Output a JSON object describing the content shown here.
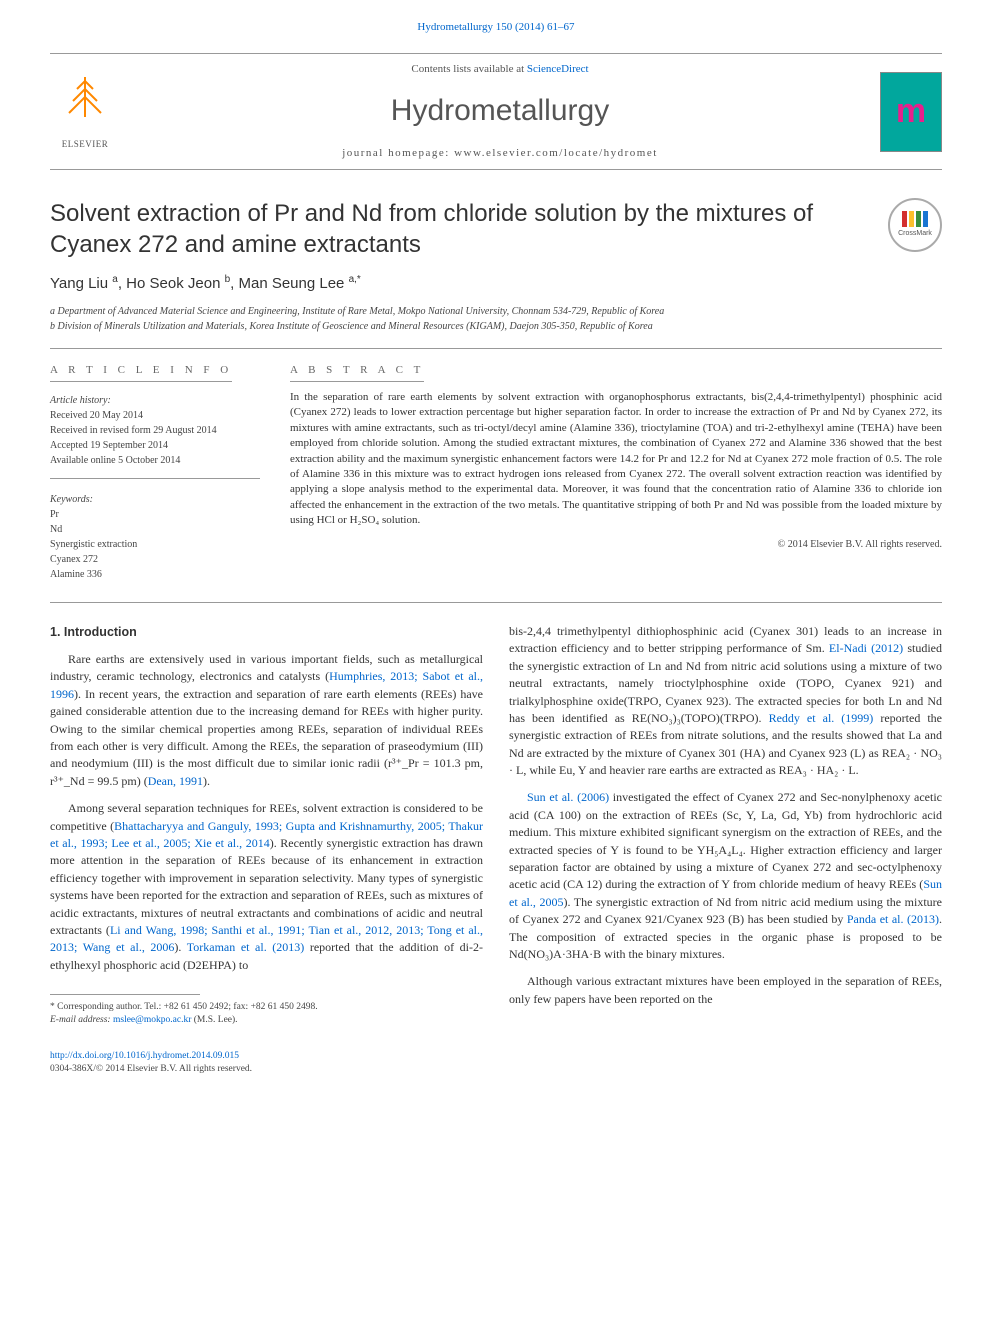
{
  "header": {
    "issue_link": "Hydrometallurgy 150 (2014) 61–67",
    "contents_prefix": "Contents lists available at ",
    "contents_link": "ScienceDirect",
    "journal_name": "Hydrometallurgy",
    "homepage": "journal homepage: www.elsevier.com/locate/hydromet",
    "publisher": "ELSEVIER",
    "crossmark": "CrossMark"
  },
  "article": {
    "title": "Solvent extraction of Pr and Nd from chloride solution by the mixtures of Cyanex 272 and amine extractants",
    "authors_html": "Yang Liu <sup>a</sup>, Ho Seok Jeon <sup>b</sup>, Man Seung Lee <sup>a,*</sup>",
    "affiliations": {
      "a": "a Department of Advanced Material Science and Engineering, Institute of Rare Metal, Mokpo National University, Chonnam 534-729, Republic of Korea",
      "b": "b Division of Minerals Utilization and Materials, Korea Institute of Geoscience and Mineral Resources (KIGAM), Daejon 305-350, Republic of Korea"
    }
  },
  "article_info": {
    "heading": "A R T I C L E   I N F O",
    "history_label": "Article history:",
    "received": "Received 20 May 2014",
    "revised": "Received in revised form 29 August 2014",
    "accepted": "Accepted 19 September 2014",
    "online": "Available online 5 October 2014",
    "keywords_label": "Keywords:",
    "keywords": [
      "Pr",
      "Nd",
      "Synergistic extraction",
      "Cyanex 272",
      "Alamine 336"
    ]
  },
  "abstract": {
    "heading": "A B S T R A C T",
    "text": "In the separation of rare earth elements by solvent extraction with organophosphorus extractants, bis(2,4,4-trimethylpentyl) phosphinic acid (Cyanex 272) leads to lower extraction percentage but higher separation factor. In order to increase the extraction of Pr and Nd by Cyanex 272, its mixtures with amine extractants, such as tri-octyl/decyl amine (Alamine 336), trioctylamine (TOA) and tri-2-ethylhexyl amine (TEHA) have been employed from chloride solution. Among the studied extractant mixtures, the combination of Cyanex 272 and Alamine 336 showed that the best extraction ability and the maximum synergistic enhancement factors were 14.2 for Pr and 12.2 for Nd at Cyanex 272 mole fraction of 0.5. The role of Alamine 336 in this mixture was to extract hydrogen ions released from Cyanex 272. The overall solvent extraction reaction was identified by applying a slope analysis method to the experimental data. Moreover, it was found that the concentration ratio of Alamine 336 to chloride ion affected the enhancement in the extraction of the two metals. The quantitative stripping of both Pr and Nd was possible from the loaded mixture by using HCl or H₂SO₄ solution.",
    "copyright": "© 2014 Elsevier B.V. All rights reserved."
  },
  "body": {
    "intro_heading": "1. Introduction",
    "left_p1_a": "Rare earths are extensively used in various important fields, such as metallurgical industry, ceramic technology, electronics and catalysts (",
    "left_p1_ref1": "Humphries, 2013; Sabot et al., 1996",
    "left_p1_b": "). In recent years, the extraction and separation of rare earth elements (REEs) have gained considerable attention due to the increasing demand for REEs with higher purity. Owing to the similar chemical properties among REEs, separation of individual REEs from each other is very difficult. Among the REEs, the separation of praseodymium (III) and neodymium (III) is the most difficult due to similar ionic radii (r³⁺_Pr = 101.3 pm, r³⁺_Nd = 99.5 pm) (",
    "left_p1_ref2": "Dean, 1991",
    "left_p1_c": ").",
    "left_p2_a": "Among several separation techniques for REEs, solvent extraction is considered to be competitive (",
    "left_p2_ref1": "Bhattacharyya and Ganguly, 1993; Gupta and Krishnamurthy, 2005; Thakur et al., 1993; Lee et al., 2005; Xie et al., 2014",
    "left_p2_b": "). Recently synergistic extraction has drawn more attention in the separation of REEs because of its enhancement in extraction efficiency together with improvement in separation selectivity. Many types of synergistic systems have been reported for the extraction and separation of REEs, such as mixtures of acidic extractants, mixtures of neutral extractants and combinations of acidic and neutral extractants (",
    "left_p2_ref2": "Li and Wang, 1998; Santhi et al., 1991; Tian et al., 2012, 2013; Tong et al., 2013; Wang et al., 2006",
    "left_p2_c": "). ",
    "left_p2_ref3": "Torkaman et al. (2013)",
    "left_p2_d": " reported that the addition of di-2-ethylhexyl phosphoric acid (D2EHPA) to ",
    "right_p1_a": "bis-2,4,4 trimethylpentyl dithiophosphinic acid (Cyanex 301) leads to an increase in extraction efficiency and to better stripping performance of Sm. ",
    "right_p1_ref1": "El-Nadi (2012)",
    "right_p1_b": " studied the synergistic extraction of Ln and Nd from nitric acid solutions using a mixture of two neutral extractants, namely trioctylphosphine oxide (TOPO, Cyanex 921) and trialkylphosphine oxide(TRPO, Cyanex 923). The extracted species for both Ln and Nd has been identified as RE(NO₃)₃(TOPO)(TRPO). ",
    "right_p1_ref2": "Reddy et al. (1999)",
    "right_p1_c": " reported the synergistic extraction of REEs from nitrate solutions, and the results showed that La and Nd are extracted by the mixture of Cyanex 301 (HA) and Cyanex 923 (L) as REA₂ · NO₃ · L, while Eu, Y and heavier rare earths are extracted as REA₃ · HA₂ · L.",
    "right_p2_ref1": "Sun et al. (2006)",
    "right_p2_a": " investigated the effect of Cyanex 272 and Sec-nonylphenoxy acetic acid (CA 100) on the extraction of REEs (Sc, Y, La, Gd, Yb) from hydrochloric acid medium. This mixture exhibited significant synergism on the extraction of REEs, and the extracted species of Y is found to be YH₅A₄L₄. Higher extraction efficiency and larger separation factor are obtained by using a mixture of Cyanex 272 and sec-octylphenoxy acetic acid (CA 12) during the extraction of Y from chloride medium of heavy REEs (",
    "right_p2_ref2": "Sun et al., 2005",
    "right_p2_b": "). The synergistic extraction of Nd from nitric acid medium using the mixture of Cyanex 272 and Cyanex 921/Cyanex 923 (B) has been studied by ",
    "right_p2_ref3": "Panda et al. (2013)",
    "right_p2_c": ". The composition of extracted species in the organic phase is proposed to be Nd(NO₃)A·3HA·B with the binary mixtures.",
    "right_p3": "Although various extractant mixtures have been employed in the separation of REEs, only few papers have been reported on the"
  },
  "footnote": {
    "corresponding": "* Corresponding author. Tel.: +82 61 450 2492; fax: +82 61 450 2498.",
    "email_label": "E-mail address: ",
    "email": "mslee@mokpo.ac.kr",
    "email_name": " (M.S. Lee)."
  },
  "footer": {
    "doi": "http://dx.doi.org/10.1016/j.hydromet.2014.09.015",
    "issn": "0304-386X/© 2014 Elsevier B.V. All rights reserved."
  },
  "colors": {
    "link": "#0066cc",
    "text": "#333333",
    "elsevier_orange": "#ff8800",
    "cover_bg": "#01a79d",
    "cover_accent": "#e91e8c"
  }
}
